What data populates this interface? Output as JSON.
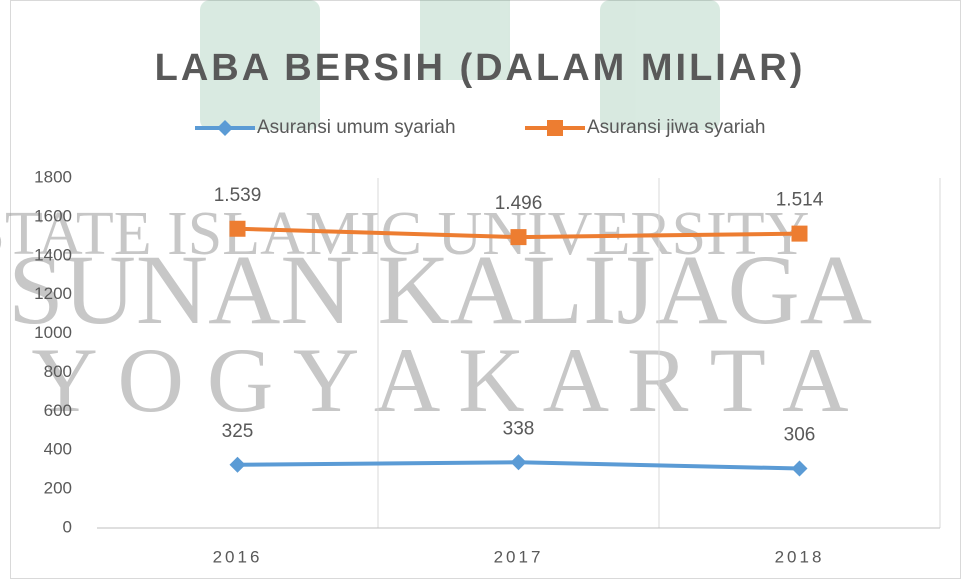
{
  "chart_data": {
    "type": "line",
    "title": "LABA BERSIH (DALAM MILIAR)",
    "categories": [
      "2016",
      "2017",
      "2018"
    ],
    "series": [
      {
        "name": "Asuransi umum syariah",
        "color": "#5b9bd5",
        "marker": "diamond",
        "values": [
          325,
          338,
          306
        ],
        "value_labels": [
          "325",
          "338",
          "306"
        ]
      },
      {
        "name": "Asuransi jiwa syariah",
        "color": "#ed7d31",
        "marker": "square",
        "values": [
          1539,
          1496,
          1514
        ],
        "value_labels": [
          "1.539",
          "1.496",
          "1.514"
        ]
      }
    ],
    "ylim": [
      0,
      1800
    ],
    "yticks": [
      0,
      200,
      400,
      600,
      800,
      1000,
      1200,
      1400,
      1600,
      1800
    ],
    "grid": true,
    "legend": "top"
  },
  "watermark": [
    "STATE ISLAMIC UNIVERSITY",
    "SUNAN KALIJAGA",
    "Y O G Y A K A R T A"
  ]
}
